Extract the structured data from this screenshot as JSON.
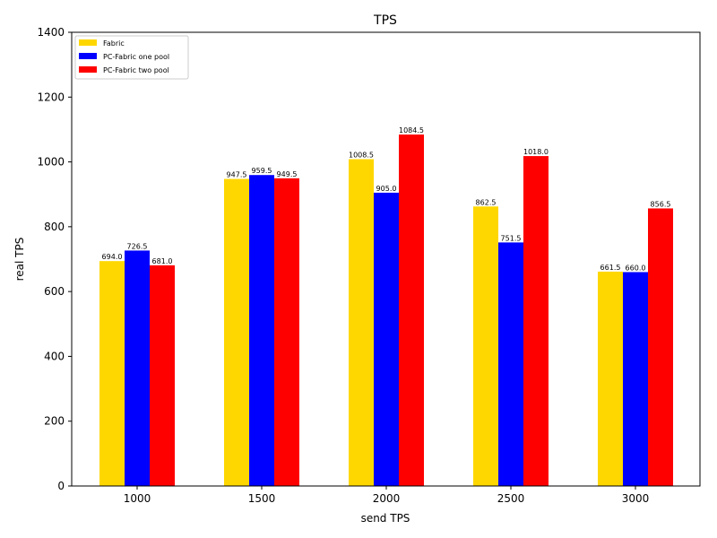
{
  "chart_data": {
    "type": "bar",
    "title": "TPS",
    "xlabel": "send TPS",
    "ylabel": "real TPS",
    "categories": [
      "1000",
      "1500",
      "2000",
      "2500",
      "3000"
    ],
    "ylim": [
      0,
      1400
    ],
    "yticks": [
      0,
      200,
      400,
      600,
      800,
      1000,
      1200,
      1400
    ],
    "grid": false,
    "legend_position": "top-left",
    "series": [
      {
        "name": "Fabric",
        "color": "#FFD700",
        "values": [
          694.0,
          947.5,
          1008.5,
          862.5,
          661.5
        ],
        "labels": [
          "694.0",
          "947.5",
          "1008.5",
          "862.5",
          "661.5"
        ]
      },
      {
        "name": "PC-Fabric one pool",
        "color": "#0000FF",
        "values": [
          726.5,
          959.5,
          905.0,
          751.5,
          660.0
        ],
        "labels": [
          "726.5",
          "959.5",
          "905.0",
          "751.5",
          "660.0"
        ]
      },
      {
        "name": "PC-Fabric two pool",
        "color": "#FF0000",
        "values": [
          681.0,
          949.5,
          1084.5,
          1018.0,
          856.5
        ],
        "labels": [
          "681.0",
          "949.5",
          "1084.5",
          "1018.0",
          "856.5"
        ]
      }
    ]
  }
}
